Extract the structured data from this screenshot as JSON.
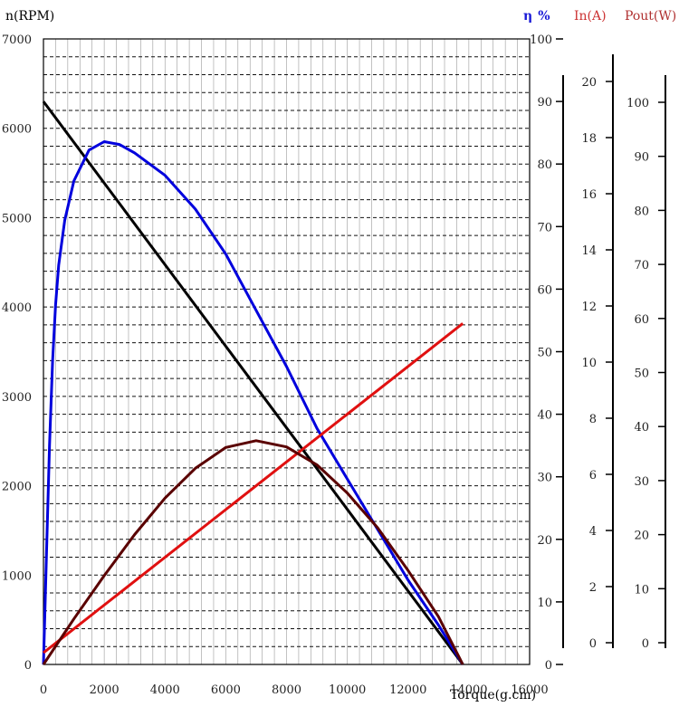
{
  "chart_data": {
    "type": "line",
    "xlabel": "Torque(g.cm)",
    "xlim": [
      0,
      16000
    ],
    "x_ticks": [
      "0",
      "2000",
      "4000",
      "6000",
      "8000",
      "10000",
      "12000",
      "14000",
      "16000"
    ],
    "grid": true,
    "axes": {
      "speed": {
        "label": "n(RPM)",
        "range": [
          0,
          7000
        ],
        "ticks": [
          "0",
          "1000",
          "2000",
          "3000",
          "4000",
          "5000",
          "6000",
          "7000"
        ]
      },
      "efficiency": {
        "label_symbol": "η",
        "label_unit": "%",
        "color": "#1a1ad6",
        "range": [
          0,
          100
        ],
        "ticks": [
          "0",
          "10",
          "20",
          "30",
          "40",
          "50",
          "60",
          "70",
          "80",
          "90",
          "100"
        ]
      },
      "current": {
        "label": "In(A)",
        "color": "#cc3333",
        "range": [
          0,
          20
        ],
        "ticks": [
          "0",
          "2",
          "4",
          "6",
          "8",
          "10",
          "12",
          "14",
          "16",
          "18",
          "20"
        ]
      },
      "power": {
        "label": "Pout(W)",
        "color": "#b03030",
        "range": [
          0,
          100
        ],
        "ticks": [
          "0",
          "10",
          "20",
          "30",
          "40",
          "50",
          "60",
          "70",
          "80",
          "90",
          "100"
        ]
      }
    },
    "series": [
      {
        "axis": "speed",
        "color": "#000000",
        "x": [
          0,
          13800
        ],
        "y": [
          6300,
          0
        ]
      },
      {
        "axis": "efficiency",
        "color": "#0000dd",
        "x": [
          0,
          100,
          200,
          300,
          400,
          500,
          700,
          1000,
          1500,
          2000,
          2500,
          3000,
          4000,
          5000,
          6000,
          7000,
          8000,
          9000,
          10000,
          11000,
          12000,
          13000,
          13800
        ],
        "y": [
          0,
          20,
          39,
          54,
          64,
          71,
          79,
          86,
          91.5,
          93,
          92.5,
          91,
          87,
          81,
          73,
          63,
          53,
          42,
          33,
          24,
          15,
          7,
          0
        ]
      },
      {
        "axis": "current",
        "color": "#e01010",
        "x": [
          0,
          13800
        ],
        "y": [
          0.4,
          11.7
        ]
      },
      {
        "axis": "power",
        "color": "#5a0000",
        "x": [
          0,
          1000,
          2000,
          3000,
          4000,
          5000,
          6000,
          7000,
          8000,
          9000,
          10000,
          11000,
          12000,
          13000,
          13800
        ],
        "y": [
          0,
          8.1,
          15.8,
          23.1,
          29.6,
          34.9,
          38.6,
          39.8,
          38.7,
          35.5,
          30.5,
          24.3,
          16.7,
          8.5,
          0
        ]
      }
    ]
  }
}
